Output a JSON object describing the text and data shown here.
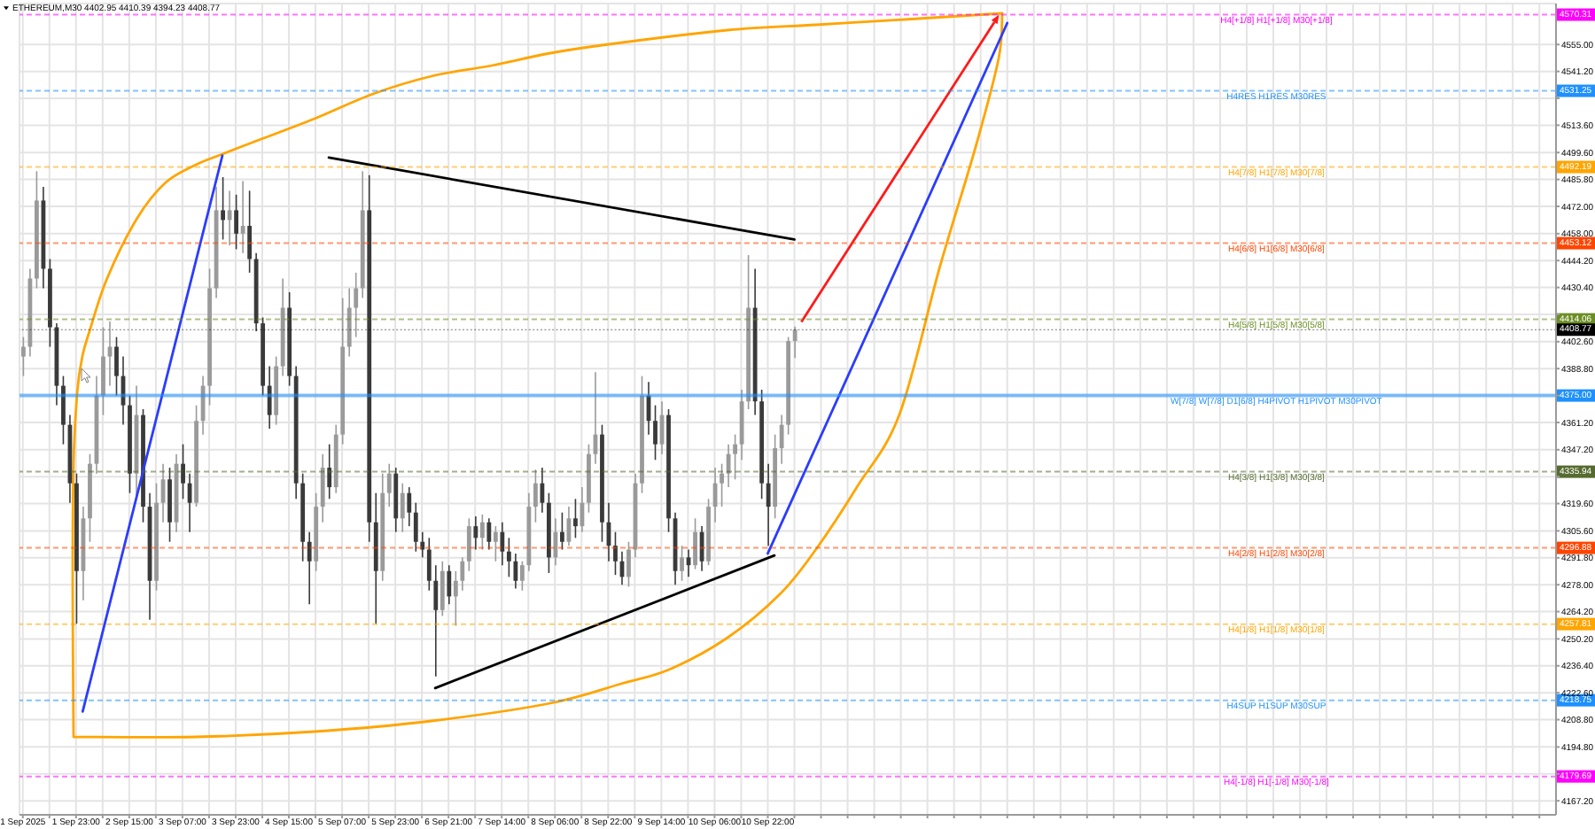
{
  "chart_data": {
    "type": "candlestick",
    "title": "ETHEREUM,M30  4402.95 4410.39 4394.23 4408.77",
    "categories": [
      "1 Sep 2025",
      null,
      null,
      null,
      null,
      null,
      null,
      null,
      "1 Sep 23:00",
      null,
      null,
      null,
      null,
      null,
      null,
      null,
      "2 Sep 15:00",
      null,
      null,
      null,
      null,
      null,
      null,
      null,
      "3 Sep 07:00",
      null,
      null,
      null,
      null,
      null,
      null,
      null,
      "3 Sep 23:00",
      null,
      null,
      null,
      null,
      null,
      null,
      null,
      "4 Sep 15:00",
      null,
      null,
      null,
      null,
      null,
      null,
      null,
      "5 Sep 07:00",
      null,
      null,
      null,
      null,
      null,
      null,
      null,
      "5 Sep 23:00",
      null,
      null,
      null,
      null,
      null,
      null,
      null,
      "6 Sep 21:00",
      null,
      null,
      null,
      null,
      null,
      null,
      null,
      "7 Sep 14:00",
      null,
      null,
      null,
      null,
      null,
      null,
      null,
      "8 Sep 06:00",
      null,
      null,
      null,
      null,
      null,
      null,
      null,
      "8 Sep 22:00",
      null,
      null,
      null,
      null,
      null,
      null,
      null,
      "9 Sep 14:00",
      null,
      null,
      null,
      null,
      null,
      null,
      null,
      "10 Sep 06:00",
      null,
      null,
      null,
      null,
      null,
      null,
      null,
      "10 Sep 22:00",
      null,
      null,
      null,
      null,
      null,
      null,
      null,
      null,
      null,
      null,
      null,
      null,
      null,
      null,
      null,
      null,
      null,
      null,
      null,
      null,
      null,
      null,
      null,
      null,
      null,
      null,
      null,
      null,
      null,
      null,
      null,
      null,
      null,
      null,
      null,
      null,
      null,
      null,
      null,
      null,
      null,
      null,
      null,
      null,
      null,
      null,
      null,
      null,
      null,
      null,
      null,
      null,
      null,
      null,
      null,
      null,
      null,
      null,
      null,
      null,
      null,
      null,
      null,
      null,
      null,
      null,
      null,
      null,
      null,
      null,
      null,
      null,
      null,
      null,
      null,
      null,
      null,
      null,
      null,
      null,
      null,
      null,
      null,
      null,
      null,
      null,
      null,
      null,
      null,
      null,
      null,
      null,
      null,
      null,
      null,
      null,
      null,
      null,
      null,
      null,
      null,
      null,
      null,
      null,
      null,
      null,
      null,
      null,
      null,
      null,
      null,
      null,
      null,
      null,
      null,
      null,
      null,
      null
    ],
    "ohlc": [
      [
        4395,
        4405,
        4385,
        4400
      ],
      [
        4400,
        4440,
        4395,
        4435
      ],
      [
        4435,
        4490,
        4430,
        4475
      ],
      [
        4475,
        4482,
        4430,
        4440
      ],
      [
        4440,
        4445,
        4400,
        4410
      ],
      [
        4410,
        4412,
        4370,
        4380
      ],
      [
        4380,
        4385,
        4350,
        4360
      ],
      [
        4360,
        4365,
        4320,
        4330
      ],
      [
        4330,
        4335,
        4258,
        4285
      ],
      [
        4285,
        4318,
        4270,
        4312
      ],
      [
        4312,
        4345,
        4300,
        4340
      ],
      [
        4340,
        4385,
        4335,
        4375
      ],
      [
        4375,
        4410,
        4365,
        4395
      ],
      [
        4395,
        4413,
        4380,
        4400
      ],
      [
        4400,
        4405,
        4375,
        4385
      ],
      [
        4385,
        4395,
        4360,
        4370
      ],
      [
        4370,
        4375,
        4325,
        4335
      ],
      [
        4335,
        4380,
        4322,
        4365
      ],
      [
        4365,
        4368,
        4310,
        4318
      ],
      [
        4318,
        4325,
        4260,
        4280
      ],
      [
        4280,
        4330,
        4275,
        4320
      ],
      [
        4320,
        4340,
        4310,
        4332
      ],
      [
        4332,
        4338,
        4300,
        4310
      ],
      [
        4310,
        4345,
        4305,
        4340
      ],
      [
        4340,
        4350,
        4322,
        4330
      ],
      [
        4330,
        4335,
        4305,
        4320
      ],
      [
        4320,
        4370,
        4318,
        4362
      ],
      [
        4362,
        4385,
        4355,
        4380
      ],
      [
        4380,
        4440,
        4370,
        4430
      ],
      [
        4430,
        4482,
        4425,
        4470
      ],
      [
        4470,
        4487,
        4455,
        4465
      ],
      [
        4465,
        4480,
        4452,
        4470
      ],
      [
        4470,
        4478,
        4450,
        4458
      ],
      [
        4458,
        4485,
        4448,
        4462
      ],
      [
        4462,
        4480,
        4438,
        4445
      ],
      [
        4445,
        4448,
        4408,
        4412
      ],
      [
        4412,
        4415,
        4375,
        4380
      ],
      [
        4380,
        4390,
        4358,
        4365
      ],
      [
        4365,
        4395,
        4360,
        4390
      ],
      [
        4390,
        4435,
        4385,
        4420
      ],
      [
        4420,
        4428,
        4380,
        4385
      ],
      [
        4385,
        4390,
        4322,
        4330
      ],
      [
        4330,
        4335,
        4290,
        4300
      ],
      [
        4300,
        4305,
        4268,
        4290
      ],
      [
        4290,
        4325,
        4285,
        4318
      ],
      [
        4318,
        4345,
        4310,
        4338
      ],
      [
        4338,
        4350,
        4322,
        4328
      ],
      [
        4328,
        4360,
        4325,
        4355
      ],
      [
        4355,
        4425,
        4350,
        4400
      ],
      [
        4400,
        4430,
        4395,
        4420
      ],
      [
        4420,
        4438,
        4405,
        4430
      ],
      [
        4430,
        4490,
        4425,
        4470
      ],
      [
        4470,
        4488,
        4300,
        4310
      ],
      [
        4310,
        4325,
        4258,
        4285
      ],
      [
        4285,
        4335,
        4280,
        4325
      ],
      [
        4325,
        4340,
        4318,
        4335
      ],
      [
        4335,
        4338,
        4305,
        4312
      ],
      [
        4312,
        4330,
        4305,
        4325
      ],
      [
        4325,
        4328,
        4308,
        4315
      ],
      [
        4315,
        4320,
        4295,
        4300
      ],
      [
        4300,
        4305,
        4292,
        4296
      ],
      [
        4296,
        4302,
        4275,
        4280
      ],
      [
        4280,
        4288,
        4231,
        4265
      ],
      [
        4265,
        4290,
        4262,
        4285
      ],
      [
        4285,
        4288,
        4268,
        4272
      ],
      [
        4272,
        4285,
        4257,
        4280
      ],
      [
        4280,
        4292,
        4275,
        4290
      ],
      [
        4290,
        4312,
        4285,
        4308
      ],
      [
        4308,
        4313,
        4296,
        4302
      ],
      [
        4302,
        4314,
        4296,
        4310
      ],
      [
        4310,
        4312,
        4296,
        4300
      ],
      [
        4300,
        4308,
        4290,
        4305
      ],
      [
        4305,
        4310,
        4288,
        4295
      ],
      [
        4295,
        4302,
        4282,
        4290
      ],
      [
        4290,
        4294,
        4276,
        4280
      ],
      [
        4280,
        4290,
        4275,
        4288
      ],
      [
        4288,
        4325,
        4285,
        4318
      ],
      [
        4318,
        4337,
        4310,
        4330
      ],
      [
        4330,
        4338,
        4315,
        4320
      ],
      [
        4320,
        4325,
        4284,
        4292
      ],
      [
        4292,
        4312,
        4288,
        4305
      ],
      [
        4305,
        4315,
        4296,
        4300
      ],
      [
        4300,
        4318,
        4298,
        4312
      ],
      [
        4312,
        4322,
        4302,
        4308
      ],
      [
        4308,
        4328,
        4305,
        4320
      ],
      [
        4320,
        4350,
        4315,
        4345
      ],
      [
        4345,
        4387,
        4340,
        4355
      ],
      [
        4355,
        4360,
        4300,
        4310
      ],
      [
        4310,
        4320,
        4290,
        4298
      ],
      [
        4298,
        4305,
        4283,
        4290
      ],
      [
        4290,
        4295,
        4278,
        4282
      ],
      [
        4282,
        4300,
        4277,
        4296
      ],
      [
        4296,
        4335,
        4292,
        4330
      ],
      [
        4330,
        4385,
        4325,
        4375
      ],
      [
        4375,
        4382,
        4355,
        4362
      ],
      [
        4362,
        4370,
        4342,
        4350
      ],
      [
        4350,
        4372,
        4345,
        4365
      ],
      [
        4365,
        4368,
        4305,
        4312
      ],
      [
        4312,
        4315,
        4278,
        4285
      ],
      [
        4285,
        4298,
        4280,
        4292
      ],
      [
        4292,
        4296,
        4282,
        4288
      ],
      [
        4288,
        4312,
        4286,
        4305
      ],
      [
        4305,
        4308,
        4285,
        4290
      ],
      [
        4290,
        4322,
        4288,
        4318
      ],
      [
        4318,
        4338,
        4310,
        4330
      ],
      [
        4330,
        4340,
        4318,
        4335
      ],
      [
        4335,
        4350,
        4328,
        4345
      ],
      [
        4345,
        4355,
        4332,
        4350
      ],
      [
        4350,
        4378,
        4342,
        4372
      ],
      [
        4372,
        4447,
        4368,
        4420
      ],
      [
        4420,
        4440,
        4365,
        4372
      ],
      [
        4372,
        4378,
        4322,
        4330
      ],
      [
        4330,
        4340,
        4298,
        4318
      ],
      [
        4318,
        4355,
        4312,
        4348
      ],
      [
        4348,
        4365,
        4340,
        4360
      ],
      [
        4360,
        4405,
        4355,
        4402.95
      ],
      [
        4402.95,
        4410.39,
        4394.23,
        4408.77
      ],
      null,
      null,
      null,
      null,
      null,
      null,
      null,
      null,
      null,
      null,
      null,
      null,
      null,
      null,
      null,
      null,
      null,
      null,
      null,
      null,
      null,
      null,
      null,
      null,
      null,
      null,
      null,
      null,
      null,
      null,
      null,
      null,
      null,
      null,
      null,
      null,
      null,
      null,
      null,
      null,
      null,
      null,
      null,
      null,
      null,
      null,
      null,
      null,
      null,
      null,
      null,
      null,
      null,
      null,
      null,
      null,
      null,
      null,
      null,
      null,
      null,
      null,
      null,
      null,
      null,
      null,
      null,
      null,
      null,
      null,
      null,
      null,
      null,
      null,
      null,
      null,
      null,
      null,
      null,
      null,
      null,
      null,
      null,
      null,
      null,
      null,
      null,
      null,
      null,
      null,
      null,
      null,
      null,
      null,
      null,
      null,
      null,
      null,
      null,
      null,
      null,
      null,
      null,
      null,
      null,
      null,
      null,
      null,
      null,
      null,
      null,
      null,
      null,
      null
    ],
    "colors": [
      "#9a9a9a",
      "#9a9a9a",
      "#9a9a9a",
      "#3a3a3a",
      "#3a3a3a",
      "#3a3a3a",
      "#3a3a3a",
      "#3a3a3a",
      "#3a3a3a",
      "#9a9a9a",
      "#9a9a9a",
      "#9a9a9a",
      "#9a9a9a",
      "#9a9a9a",
      "#3a3a3a",
      "#3a3a3a",
      "#3a3a3a",
      "#9a9a9a",
      "#3a3a3a",
      "#3a3a3a",
      "#9a9a9a",
      "#9a9a9a",
      "#3a3a3a",
      "#9a9a9a",
      "#3a3a3a",
      "#3a3a3a",
      "#9a9a9a",
      "#9a9a9a",
      "#9a9a9a",
      "#9a9a9a",
      "#3a3a3a",
      "#9a9a9a",
      "#3a3a3a",
      "#9a9a9a",
      "#3a3a3a",
      "#3a3a3a",
      "#3a3a3a",
      "#3a3a3a",
      "#9a9a9a",
      "#9a9a9a",
      "#3a3a3a",
      "#3a3a3a",
      "#3a3a3a",
      "#3a3a3a",
      "#9a9a9a",
      "#9a9a9a",
      "#3a3a3a",
      "#9a9a9a",
      "#9a9a9a",
      "#9a9a9a",
      "#9a9a9a",
      "#9a9a9a",
      "#3a3a3a",
      "#3a3a3a",
      "#9a9a9a",
      "#9a9a9a",
      "#3a3a3a",
      "#9a9a9a",
      "#3a3a3a",
      "#3a3a3a",
      "#3a3a3a",
      "#3a3a3a",
      "#3a3a3a",
      "#9a9a9a",
      "#3a3a3a",
      "#9a9a9a",
      "#9a9a9a",
      "#9a9a9a",
      "#3a3a3a",
      "#9a9a9a",
      "#3a3a3a",
      "#9a9a9a",
      "#3a3a3a",
      "#3a3a3a",
      "#3a3a3a",
      "#9a9a9a",
      "#9a9a9a",
      "#9a9a9a",
      "#3a3a3a",
      "#3a3a3a",
      "#9a9a9a",
      "#3a3a3a",
      "#9a9a9a",
      "#3a3a3a",
      "#9a9a9a",
      "#9a9a9a",
      "#9a9a9a",
      "#3a3a3a",
      "#3a3a3a",
      "#3a3a3a",
      "#3a3a3a",
      "#9a9a9a",
      "#9a9a9a",
      "#9a9a9a",
      "#3a3a3a",
      "#3a3a3a",
      "#9a9a9a",
      "#3a3a3a",
      "#3a3a3a",
      "#9a9a9a",
      "#3a3a3a",
      "#9a9a9a",
      "#3a3a3a",
      "#9a9a9a",
      "#9a9a9a",
      "#9a9a9a",
      "#9a9a9a",
      "#9a9a9a",
      "#9a9a9a",
      "#9a9a9a",
      "#3a3a3a",
      "#3a3a3a",
      "#3a3a3a",
      "#9a9a9a",
      "#9a9a9a",
      "#9a9a9a",
      "#9a9a9a",
      null,
      null,
      null,
      null,
      null,
      null,
      null,
      null,
      null,
      null,
      null,
      null,
      null,
      null,
      null,
      null,
      null,
      null,
      null,
      null,
      null,
      null,
      null,
      null,
      null,
      null,
      null,
      null,
      null,
      null,
      null,
      null,
      null,
      null,
      null,
      null,
      null,
      null,
      null,
      null,
      null,
      null,
      null,
      null,
      null,
      null,
      null,
      null,
      null,
      null,
      null,
      null,
      null,
      null,
      null,
      null,
      null,
      null,
      null,
      null,
      null,
      null,
      null,
      null,
      null,
      null,
      null,
      null,
      null,
      null,
      null,
      null,
      null,
      null,
      null,
      null,
      null,
      null,
      null,
      null,
      null,
      null,
      null,
      null,
      null,
      null,
      null,
      null,
      null,
      null,
      null,
      null,
      null,
      null,
      null,
      null,
      null,
      null,
      null,
      null,
      null,
      null,
      null,
      null,
      null,
      null,
      null,
      null,
      null,
      null,
      null,
      null,
      null,
      null
    ],
    "series": [
      {
        "type": "line",
        "color": "#2b3cff",
        "values": [
          null,
          null,
          null,
          null,
          null,
          null,
          null,
          null,
          null,
          4213,
          null,
          null,
          null,
          null,
          null,
          null,
          null,
          null,
          null,
          null,
          null,
          null,
          null,
          null,
          null,
          null,
          null,
          null,
          null,
          null,
          4498,
          null,
          null,
          null,
          null,
          null,
          null,
          null,
          null,
          null,
          null,
          null,
          null,
          null,
          null,
          null,
          null,
          null,
          null,
          null,
          null,
          null,
          null,
          null,
          null,
          null,
          null,
          null,
          null,
          null,
          null,
          null,
          null,
          null,
          null,
          null,
          null,
          null,
          null,
          null,
          null,
          null,
          null,
          null,
          null,
          null,
          null,
          null,
          null,
          null,
          null,
          null,
          null,
          null,
          null,
          null,
          null,
          null,
          null,
          null,
          null,
          null,
          null,
          null,
          null,
          null,
          null,
          null,
          null,
          null,
          null,
          null,
          null,
          null,
          null,
          null,
          null,
          null,
          null,
          null,
          null,
          null,
          null,
          null,
          null,
          null,
          null,
          null,
          null,
          null,
          null,
          null,
          null,
          null,
          null,
          null,
          null,
          null,
          null,
          null,
          null,
          null,
          null,
          null,
          null,
          null,
          null,
          null,
          null,
          null,
          null,
          null,
          null,
          null,
          null,
          null,
          null,
          null,
          null,
          null,
          null,
          null,
          null,
          null,
          null,
          null,
          null,
          null,
          null,
          null,
          null,
          null,
          null,
          null,
          null,
          null,
          null,
          null,
          null,
          null,
          null,
          null,
          null,
          null,
          null,
          null,
          null,
          null,
          null,
          null,
          null,
          null,
          null,
          null,
          null,
          null,
          null,
          null,
          null,
          null,
          null,
          null,
          null,
          null,
          null,
          null,
          null,
          null,
          null,
          null,
          null,
          null,
          null,
          null,
          null,
          null,
          null,
          null,
          null,
          null,
          null,
          null,
          null,
          null,
          null,
          null,
          null,
          null,
          null,
          null,
          null,
          null,
          null,
          null,
          null,
          null,
          null,
          null,
          null,
          null,
          null
        ]
      },
      {
        "type": "line",
        "color": "#000000",
        "values": [
          null,
          null,
          null,
          null,
          null,
          null,
          null,
          null,
          null,
          null,
          null,
          null,
          null,
          null,
          null,
          null,
          null,
          null,
          null,
          null,
          null,
          null,
          null,
          null,
          null,
          null,
          null,
          null,
          null,
          null,
          null,
          null,
          null,
          null,
          null,
          null,
          null,
          null,
          null,
          null,
          null,
          null,
          null,
          null,
          null,
          null,
          4497,
          null,
          null,
          null,
          null,
          null,
          null,
          null,
          null,
          null,
          null,
          null,
          null,
          null,
          null,
          null,
          null,
          null,
          null,
          null,
          null,
          null,
          null,
          null,
          null,
          null,
          null,
          null,
          null,
          null,
          null,
          null,
          null,
          null,
          null,
          null,
          null,
          null,
          null,
          null,
          null,
          null,
          null,
          null,
          null,
          null,
          null,
          null,
          null,
          null,
          null,
          null,
          null,
          null,
          null,
          null,
          null,
          null,
          null,
          null,
          null,
          null,
          null,
          null,
          null,
          null,
          null,
          null,
          null,
          null,
          4455,
          null,
          null,
          null,
          null,
          null,
          null,
          null,
          null,
          null,
          null,
          null,
          null,
          null,
          null,
          null,
          null,
          null,
          null,
          null,
          null,
          null,
          null,
          null,
          null,
          null,
          null,
          null,
          null,
          null,
          null,
          null,
          null,
          null,
          null,
          null,
          null,
          null,
          null,
          null,
          null,
          null,
          null,
          null,
          null,
          null,
          null,
          null,
          null,
          null,
          null,
          null,
          null,
          null,
          null,
          null,
          null,
          null,
          null,
          null,
          null,
          null,
          null,
          null,
          null,
          null,
          null,
          null,
          null,
          null,
          null,
          null,
          null,
          null,
          null,
          null,
          null,
          null,
          null,
          null,
          null,
          null,
          null,
          null,
          null,
          null,
          null,
          null,
          null,
          null,
          null,
          null,
          null,
          null,
          null,
          null,
          null,
          null,
          null,
          null,
          null,
          null,
          null,
          null,
          null,
          null,
          null,
          null,
          null,
          null,
          null,
          null,
          null,
          null,
          null
        ]
      },
      {
        "type": "line",
        "color": "#000000",
        "values": [
          null,
          null,
          null,
          null,
          null,
          null,
          null,
          null,
          null,
          null,
          null,
          null,
          null,
          null,
          null,
          null,
          null,
          null,
          null,
          null,
          null,
          null,
          null,
          null,
          null,
          null,
          null,
          null,
          null,
          null,
          null,
          null,
          null,
          null,
          null,
          null,
          null,
          null,
          null,
          null,
          null,
          null,
          null,
          null,
          null,
          null,
          null,
          null,
          null,
          null,
          null,
          null,
          null,
          null,
          null,
          null,
          null,
          null,
          null,
          null,
          null,
          null,
          4225,
          null,
          null,
          null,
          null,
          null,
          null,
          null,
          null,
          null,
          null,
          null,
          null,
          null,
          null,
          null,
          null,
          null,
          null,
          null,
          null,
          null,
          null,
          null,
          null,
          null,
          null,
          null,
          null,
          null,
          null,
          null,
          null,
          null,
          null,
          null,
          null,
          null,
          null,
          null,
          null,
          null,
          null,
          null,
          null,
          null,
          null,
          null,
          null,
          null,
          null,
          4293,
          null,
          null,
          null,
          null,
          null,
          null,
          null,
          null,
          null,
          null,
          null,
          null,
          null,
          null,
          null,
          null,
          null,
          null,
          null,
          null,
          null,
          null,
          null,
          null,
          null,
          null,
          null,
          null,
          null,
          null,
          null,
          null,
          null,
          null,
          null,
          null,
          null,
          null,
          null,
          null,
          null,
          null,
          null,
          null,
          null,
          null,
          null,
          null,
          null,
          null,
          null,
          null,
          null,
          null,
          null,
          null,
          null,
          null,
          null,
          null,
          null,
          null,
          null,
          null,
          null,
          null,
          null,
          null,
          null,
          null,
          null,
          null,
          null,
          null,
          null,
          null,
          null,
          null,
          null,
          null,
          null,
          null,
          null,
          null,
          null,
          null,
          null,
          null,
          null,
          null,
          null,
          null,
          null,
          null,
          null,
          null,
          null,
          null,
          null,
          null,
          null,
          null,
          null,
          null,
          null,
          null,
          null,
          null,
          null,
          null,
          null,
          null,
          null,
          null,
          null,
          null,
          null
        ]
      },
      {
        "type": "line",
        "color": "#2b3cff",
        "values": [
          null,
          null,
          null,
          null,
          null,
          null,
          null,
          null,
          null,
          null,
          null,
          null,
          null,
          null,
          null,
          null,
          null,
          null,
          null,
          null,
          null,
          null,
          null,
          null,
          null,
          null,
          null,
          null,
          null,
          null,
          null,
          null,
          null,
          null,
          null,
          null,
          null,
          null,
          null,
          null,
          null,
          null,
          null,
          null,
          null,
          null,
          null,
          null,
          null,
          null,
          null,
          null,
          null,
          null,
          null,
          null,
          null,
          null,
          null,
          null,
          null,
          null,
          null,
          null,
          null,
          null,
          null,
          null,
          null,
          null,
          null,
          null,
          null,
          null,
          null,
          null,
          null,
          null,
          null,
          null,
          null,
          null,
          null,
          null,
          null,
          null,
          null,
          null,
          null,
          null,
          null,
          null,
          null,
          null,
          null,
          null,
          null,
          null,
          null,
          null,
          null,
          null,
          null,
          null,
          null,
          null,
          null,
          null,
          null,
          null,
          null,
          null,
          4294,
          null,
          null,
          null,
          null,
          null,
          null,
          null,
          null,
          null,
          null,
          null,
          null,
          null,
          null,
          null,
          null,
          null,
          null,
          null,
          null,
          null,
          null,
          null,
          null,
          null,
          null,
          null,
          null,
          null,
          null,
          null,
          null,
          null,
          null,
          null,
          4566,
          null,
          null,
          null,
          null,
          null,
          null,
          null,
          null,
          null,
          null,
          null,
          null,
          null,
          null,
          null,
          null,
          null,
          null,
          null,
          null,
          null,
          null,
          null,
          null,
          null,
          null,
          null,
          null,
          null,
          null,
          null,
          null,
          null,
          null,
          null,
          null,
          null,
          null,
          null,
          null,
          null,
          null,
          null,
          null,
          null,
          null,
          null,
          null,
          null,
          null,
          null,
          null,
          null,
          null,
          null,
          null,
          null,
          null,
          null,
          null,
          null,
          null,
          null,
          null,
          null,
          null,
          null,
          null,
          null,
          null,
          null,
          null,
          null,
          null,
          null,
          null,
          null,
          null,
          null,
          null,
          null,
          null
        ]
      }
    ],
    "ylim": [
      4160,
      4576
    ],
    "yticks": [
      {
        "value": 4167.2,
        "label": "4167.20"
      },
      {
        "value": 4181,
        "label": null
      },
      {
        "value": 4194.8,
        "label": "4194.80"
      },
      {
        "value": 4208.8,
        "label": "4208.80"
      },
      {
        "value": 4222.6,
        "label": "4222.60"
      },
      {
        "value": 4236.4,
        "label": "4236.40"
      },
      {
        "value": 4250.2,
        "label": "4250.20"
      },
      {
        "value": 4264.2,
        "label": "4264.20"
      },
      {
        "value": 4278,
        "label": "4278.00"
      },
      {
        "value": 4291.8,
        "label": "4291.80"
      },
      {
        "value": 4305.6,
        "label": "4305.60"
      },
      {
        "value": 4319.6,
        "label": "4319.60"
      },
      {
        "value": 4333.4,
        "label": null
      },
      {
        "value": 4347.2,
        "label": "4347.20"
      },
      {
        "value": 4361.2,
        "label": "4361.20"
      },
      {
        "value": 4375,
        "label": null
      },
      {
        "value": 4388.8,
        "label": "4388.80"
      },
      {
        "value": 4402.6,
        "label": "4402.60"
      },
      {
        "value": 4416.6,
        "label": null
      },
      {
        "value": 4430.4,
        "label": "4430.40"
      },
      {
        "value": 4444.2,
        "label": "4444.20"
      },
      {
        "value": 4458,
        "label": "4458.00"
      },
      {
        "value": 4472,
        "label": "4472.00"
      },
      {
        "value": 4485.8,
        "label": "4485.80"
      },
      {
        "value": 4499.6,
        "label": "4499.60"
      },
      {
        "value": 4513.6,
        "label": "4513.60"
      },
      {
        "value": 4527.4,
        "label": null
      },
      {
        "value": 4541.2,
        "label": "4541.20"
      },
      {
        "value": 4555,
        "label": "4555.00"
      }
    ],
    "grid": true,
    "ref_lines": [
      {
        "axis": "y",
        "value": 4570.31,
        "label": "H4[+1/8] H1[+1/8] M30[+1/8]",
        "color": "#ff00ff",
        "line_style": "dashed"
      },
      {
        "axis": "y",
        "value": 4531.25,
        "label": "H4RES H1RES M30RES",
        "color": "#1e90ff",
        "line_style": "dashed"
      },
      {
        "axis": "y",
        "value": 4492.19,
        "label": "H4[7/8] H1[7/8] M30[7/8]",
        "color": "#ffa500",
        "line_style": "dashed"
      },
      {
        "axis": "y",
        "value": 4453.12,
        "label": "H4[6/8] H1[6/8] M30[6/8]",
        "color": "#ff4500",
        "line_style": "dashed"
      },
      {
        "axis": "y",
        "value": 4414.06,
        "label": "H4[5/8] H1[5/8] M30[5/8]",
        "color": "#6b8e23",
        "line_style": "dashed"
      },
      {
        "axis": "y",
        "value": 4408.77,
        "color": "#000000",
        "line_style": "dotted"
      },
      {
        "axis": "y",
        "value": 4375,
        "label": "W[7/8] W[7/8] D1[6/8] H4PIVOT H1PIVOT M30PIVOT",
        "color": "#1e90ff",
        "line_style": "solid"
      },
      {
        "axis": "y",
        "value": 4335.94,
        "label": "H4[3/8] H1[3/8] M30[3/8]",
        "color": "#556b2f",
        "line_style": "dashed"
      },
      {
        "axis": "y",
        "value": 4296.88,
        "label": "H4[2/8] H1[2/8] M30[2/8]",
        "color": "#ff4500",
        "line_style": "dashed"
      },
      {
        "axis": "y",
        "value": 4257.81,
        "label": "H4[1/8] H1[1/8] M30[1/8]",
        "color": "#ffa500",
        "line_style": "dashed"
      },
      {
        "axis": "y",
        "value": 4218.75,
        "label": "H4SUP H1SUP M30SUP",
        "color": "#1e90ff",
        "line_style": "dashed"
      },
      {
        "axis": "y",
        "value": 4179.69,
        "label": "H4[-1/8] H1[-1/8] M30[-1/8]",
        "color": "#ff00ff",
        "line_style": "dashed"
      }
    ],
    "annotations": [
      {
        "text": "4570.31",
        "y": 4570.31
      },
      {
        "text": "4531.25",
        "y": 4531.25
      },
      {
        "text": "4492.19",
        "y": 4492.19
      },
      {
        "text": "4453.12",
        "y": 4453.12
      },
      {
        "text": "4414.06",
        "y": 4414.06
      },
      {
        "text": "4408.77",
        "y": 4408.77
      },
      {
        "text": "4375.00",
        "y": 4375
      },
      {
        "text": "4335.94",
        "y": 4335.94
      },
      {
        "text": "4296.88",
        "y": 4296.88
      },
      {
        "text": "4257.81",
        "y": 4257.81
      },
      {
        "text": "4218.75",
        "y": 4218.75
      },
      {
        "text": "4179.69",
        "y": 4179.69
      }
    ]
  }
}
